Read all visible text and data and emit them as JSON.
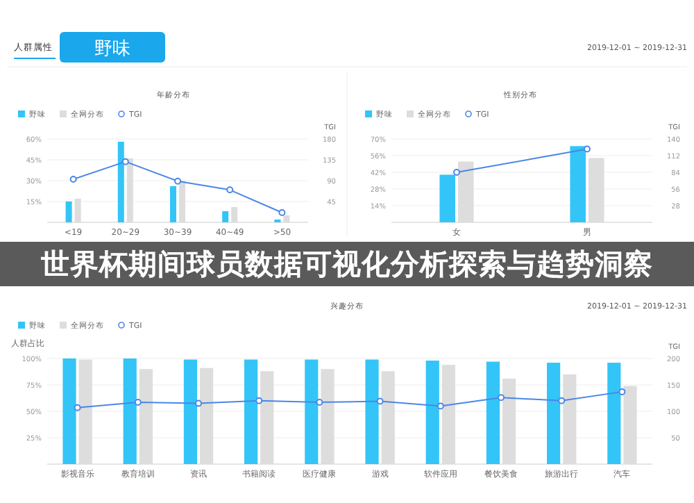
{
  "chart_data": [
    {
      "type": "bar",
      "title": "年龄分布",
      "y2label": "TGI",
      "categories": [
        "<19",
        "20~29",
        "30~39",
        "40~49",
        ">50"
      ],
      "series": [
        {
          "name": "野味",
          "color": "#33c5f7",
          "values": [
            15,
            58,
            26,
            8,
            2
          ]
        },
        {
          "name": "全网分布",
          "color": "#dddddd",
          "values": [
            17,
            46,
            30,
            11,
            5
          ]
        },
        {
          "name": "TGI",
          "type": "line",
          "axis": "y2",
          "color": "#4a86e8",
          "marker": "circle",
          "values": [
            93,
            131,
            89,
            70,
            21
          ]
        }
      ],
      "ylim": [
        0,
        60
      ],
      "yticks": [
        {
          "value": 15,
          "label": "15%"
        },
        {
          "value": 30,
          "label": "30%"
        },
        {
          "value": 45,
          "label": "45%"
        },
        {
          "value": 60,
          "label": "60%"
        }
      ],
      "y2lim": [
        0,
        180
      ],
      "y2ticks": [
        45,
        90,
        135,
        180
      ],
      "grid": "y",
      "legend": "top left",
      "annotations": [
        "人群属性",
        "野味",
        "2019-12-01 ~ 2019-12-31",
        "世界杯期间球员数据可视化分析探索与趋势洞察"
      ]
    },
    {
      "type": "bar",
      "title": "性别分布",
      "y2label": "TGI",
      "categories": [
        "女",
        "男"
      ],
      "series": [
        {
          "name": "野味",
          "color": "#33c5f7",
          "values": [
            40,
            64
          ]
        },
        {
          "name": "全网分布",
          "color": "#dddddd",
          "values": [
            51,
            54
          ]
        },
        {
          "name": "TGI",
          "type": "line",
          "axis": "y2",
          "color": "#4a86e8",
          "marker": "circle",
          "values": [
            84,
            123
          ]
        }
      ],
      "ylim": [
        0,
        70
      ],
      "yticks": [
        {
          "value": 14,
          "label": "14%"
        },
        {
          "value": 28,
          "label": "28%"
        },
        {
          "value": 42,
          "label": "42%"
        },
        {
          "value": 56,
          "label": "56%"
        },
        {
          "value": 70,
          "label": "70%"
        }
      ],
      "y2lim": [
        0,
        140
      ],
      "y2ticks": [
        28,
        56,
        84,
        112,
        140
      ],
      "grid": "y",
      "legend": "top left"
    },
    {
      "type": "bar",
      "title": "兴趣分布",
      "ylabel": "人群占比",
      "y2label": "TGI",
      "categories": [
        "影视音乐",
        "教育培训",
        "资讯",
        "书籍阅读",
        "医疗健康",
        "游戏",
        "软件应用",
        "餐饮美食",
        "旅游出行",
        "汽车"
      ],
      "series": [
        {
          "name": "野味",
          "color": "#33c5f7",
          "values": [
            100,
            100,
            99,
            99,
            99,
            99,
            98,
            97,
            96,
            96
          ]
        },
        {
          "name": "全网分布",
          "color": "#dddddd",
          "values": [
            99,
            90,
            91,
            88,
            90,
            88,
            94,
            81,
            85,
            74
          ]
        },
        {
          "name": "TGI",
          "type": "line",
          "axis": "y2",
          "color": "#4a86e8",
          "marker": "circle",
          "values": [
            107,
            117,
            115,
            120,
            117,
            119,
            110,
            126,
            120,
            137
          ]
        }
      ],
      "ylim": [
        0,
        100
      ],
      "yticks": [
        {
          "value": 25,
          "label": "25%"
        },
        {
          "value": 50,
          "label": "50%"
        },
        {
          "value": 75,
          "label": "75%"
        },
        {
          "value": 100,
          "label": "100%"
        }
      ],
      "y2lim": [
        0,
        200
      ],
      "y2ticks": [
        50,
        100,
        150,
        200
      ],
      "grid": "y",
      "legend": "top left",
      "annotations": [
        "2019-12-01 ~ 2019-12-31"
      ]
    }
  ]
}
